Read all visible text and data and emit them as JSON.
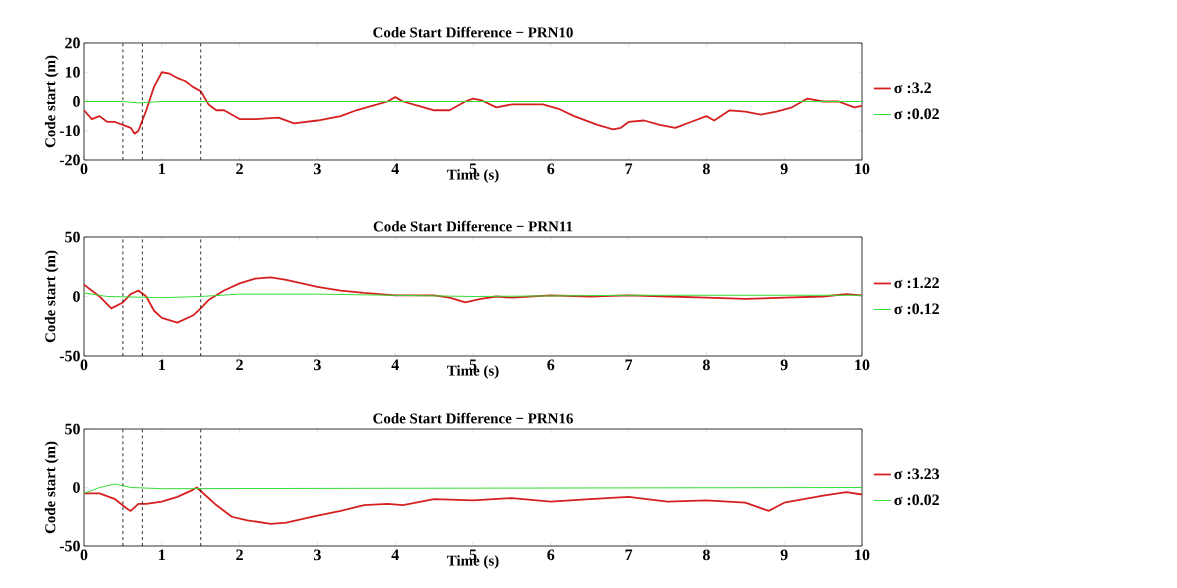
{
  "chart_data": [
    {
      "type": "line",
      "title": "Code Start Difference − PRN10",
      "xlabel": "Time (s)",
      "ylabel": "Code start (m)",
      "xlim": [
        0,
        10
      ],
      "ylim": [
        -20,
        20
      ],
      "xticks": [
        0,
        1,
        2,
        3,
        4,
        5,
        6,
        7,
        8,
        9,
        10
      ],
      "yticks": [
        -20,
        -10,
        0,
        10,
        20
      ],
      "legend": "right",
      "ref_lines": [
        {
          "axis": "x",
          "value": 0.5,
          "color": "#000000",
          "line_style": "dashed"
        },
        {
          "axis": "x",
          "value": 0.75,
          "color": "#000000",
          "line_style": "dashed"
        },
        {
          "axis": "x",
          "value": 1.5,
          "color": "#000000",
          "line_style": "dashed"
        }
      ],
      "series": [
        {
          "name": "σ :3.2",
          "color": "#d62020",
          "x": [
            0,
            0.1,
            0.2,
            0.3,
            0.4,
            0.5,
            0.6,
            0.65,
            0.7,
            0.8,
            0.9,
            1.0,
            1.1,
            1.2,
            1.3,
            1.4,
            1.5,
            1.6,
            1.7,
            1.8,
            2.0,
            2.2,
            2.5,
            2.7,
            3.0,
            3.3,
            3.5,
            3.7,
            3.9,
            4.0,
            4.1,
            4.3,
            4.5,
            4.7,
            4.9,
            5.0,
            5.1,
            5.3,
            5.5,
            5.7,
            5.9,
            6.1,
            6.3,
            6.6,
            6.8,
            6.9,
            7.0,
            7.2,
            7.4,
            7.6,
            7.8,
            8.0,
            8.1,
            8.3,
            8.5,
            8.7,
            8.9,
            9.1,
            9.3,
            9.5,
            9.7,
            9.9,
            10
          ],
          "values": [
            -3,
            -6,
            -5,
            -7,
            -7,
            -8,
            -9,
            -11,
            -10,
            -3,
            5,
            10,
            9.5,
            8,
            7,
            5,
            3.5,
            -1,
            -3,
            -3,
            -6,
            -6,
            -5.5,
            -7.5,
            -6.5,
            -5,
            -3,
            -1.5,
            0,
            1.5,
            0,
            -1.5,
            -3,
            -3,
            0,
            1,
            0.5,
            -2,
            -1,
            -1,
            -1,
            -2.5,
            -5,
            -8,
            -9.5,
            -9,
            -7,
            -6.5,
            -8,
            -9,
            -7,
            -5,
            -6.5,
            -3,
            -3.5,
            -4.5,
            -3.5,
            -2,
            1,
            0,
            0,
            -2,
            -1.5
          ]
        },
        {
          "name": "σ :0.02",
          "color": "#33dd33",
          "x": [
            0,
            0.5,
            0.7,
            1,
            5,
            10
          ],
          "values": [
            0,
            0,
            -0.5,
            0,
            0,
            0
          ]
        }
      ]
    },
    {
      "type": "line",
      "title": "Code Start Difference − PRN11",
      "xlabel": "Time (s)",
      "ylabel": "Code start (m)",
      "xlim": [
        0,
        10
      ],
      "ylim": [
        -50,
        50
      ],
      "xticks": [
        0,
        1,
        2,
        3,
        4,
        5,
        6,
        7,
        8,
        9,
        10
      ],
      "yticks": [
        -50,
        0,
        50
      ],
      "legend": "right",
      "ref_lines": [
        {
          "axis": "x",
          "value": 0.5,
          "color": "#000000",
          "line_style": "dashed"
        },
        {
          "axis": "x",
          "value": 0.75,
          "color": "#000000",
          "line_style": "dashed"
        },
        {
          "axis": "x",
          "value": 1.5,
          "color": "#000000",
          "line_style": "dashed"
        }
      ],
      "series": [
        {
          "name": "σ :1.22",
          "color": "#d62020",
          "x": [
            0,
            0.1,
            0.2,
            0.35,
            0.5,
            0.6,
            0.7,
            0.8,
            0.9,
            1.0,
            1.2,
            1.4,
            1.5,
            1.6,
            1.8,
            2.0,
            2.2,
            2.4,
            2.6,
            2.8,
            3.0,
            3.3,
            3.6,
            4.0,
            4.5,
            4.7,
            4.9,
            5.1,
            5.3,
            5.5,
            6.0,
            6.5,
            7.0,
            7.5,
            8.0,
            8.5,
            9.0,
            9.5,
            9.8,
            10
          ],
          "values": [
            10,
            5,
            0,
            -10,
            -5,
            2,
            5,
            0,
            -12,
            -18,
            -22,
            -16,
            -10,
            -3,
            5,
            11,
            15,
            16,
            14,
            11,
            8,
            5,
            3,
            1,
            1,
            -1,
            -5,
            -2,
            0,
            -1,
            1,
            0,
            1,
            0,
            -1,
            -2,
            -1,
            0,
            2,
            1
          ]
        },
        {
          "name": "σ :0.12",
          "color": "#33dd33",
          "x": [
            0,
            0.3,
            1,
            1.5,
            2,
            3,
            4,
            5,
            7,
            10
          ],
          "values": [
            3,
            0,
            -1,
            0,
            2,
            2,
            1,
            0,
            1,
            1
          ]
        }
      ]
    },
    {
      "type": "line",
      "title": "Code Start Difference − PRN16",
      "xlabel": "Time (s)",
      "ylabel": "Code start (m)",
      "xlim": [
        0,
        10
      ],
      "ylim": [
        -50,
        50
      ],
      "xticks": [
        0,
        1,
        2,
        3,
        4,
        5,
        6,
        7,
        8,
        9,
        10
      ],
      "yticks": [
        -50,
        0,
        50
      ],
      "legend": "right",
      "ref_lines": [
        {
          "axis": "x",
          "value": 0.5,
          "color": "#000000",
          "line_style": "dashed"
        },
        {
          "axis": "x",
          "value": 0.75,
          "color": "#000000",
          "line_style": "dashed"
        },
        {
          "axis": "x",
          "value": 1.5,
          "color": "#000000",
          "line_style": "dashed"
        }
      ],
      "series": [
        {
          "name": "σ :3.23",
          "color": "#d62020",
          "x": [
            0,
            0.2,
            0.4,
            0.55,
            0.6,
            0.7,
            0.8,
            1.0,
            1.2,
            1.4,
            1.45,
            1.5,
            1.7,
            1.9,
            2.1,
            2.4,
            2.6,
            3.0,
            3.3,
            3.6,
            3.9,
            4.1,
            4.5,
            5.0,
            5.5,
            6.0,
            6.5,
            7.0,
            7.5,
            8.0,
            8.5,
            8.8,
            9.0,
            9.5,
            9.8,
            10
          ],
          "values": [
            -5,
            -5,
            -10,
            -18,
            -20,
            -14,
            -14,
            -12,
            -8,
            -2,
            0,
            -3,
            -15,
            -25,
            -28,
            -31,
            -30,
            -24,
            -20,
            -15,
            -14,
            -15,
            -10,
            -11,
            -9,
            -12,
            -10,
            -8,
            -12,
            -11,
            -13,
            -20,
            -13,
            -7,
            -4,
            -6
          ]
        },
        {
          "name": "σ :0.02",
          "color": "#33dd33",
          "x": [
            0,
            0.2,
            0.4,
            0.6,
            1,
            10
          ],
          "values": [
            -5,
            0,
            3,
            0,
            -1,
            0
          ]
        }
      ]
    }
  ]
}
